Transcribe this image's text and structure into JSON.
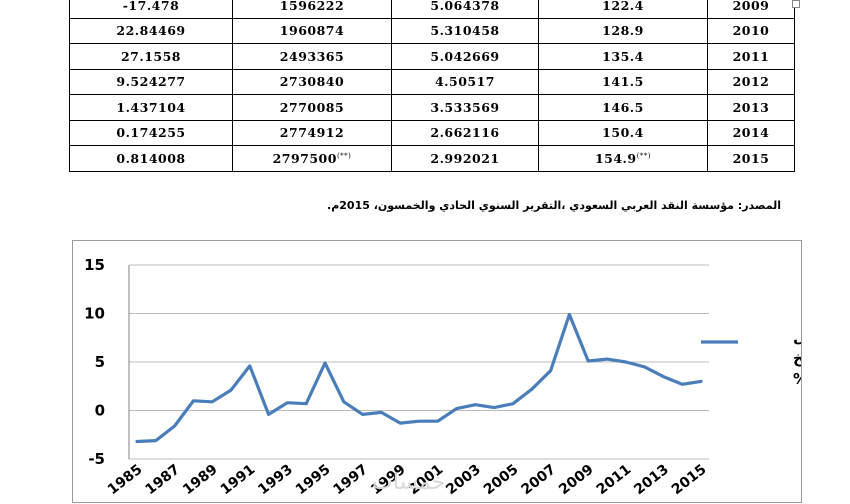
{
  "table": {
    "rows": [
      {
        "year": "2009",
        "c4": "122.4",
        "c4_note": "",
        "c3": "5.064378",
        "c2": "1596222",
        "c2_note": "",
        "c1": "-17.478"
      },
      {
        "year": "2010",
        "c4": "128.9",
        "c4_note": "",
        "c3": "5.310458",
        "c2": "1960874",
        "c2_note": "",
        "c1": "22.84469"
      },
      {
        "year": "2011",
        "c4": "135.4",
        "c4_note": "",
        "c3": "5.042669",
        "c2": "2493365",
        "c2_note": "",
        "c1": "27.1558"
      },
      {
        "year": "2012",
        "c4": "141.5",
        "c4_note": "",
        "c3": "4.50517",
        "c2": "2730840",
        "c2_note": "",
        "c1": "9.524277"
      },
      {
        "year": "2013",
        "c4": "146.5",
        "c4_note": "",
        "c3": "3.533569",
        "c2": "2770085",
        "c2_note": "",
        "c1": "1.437104"
      },
      {
        "year": "2014",
        "c4": "150.4",
        "c4_note": "",
        "c3": "2.662116",
        "c2": "2774912",
        "c2_note": "",
        "c1": "0.174255"
      },
      {
        "year": "2015",
        "c4": "154.9",
        "c4_note": "(**)",
        "c3": "2.992021",
        "c2": "2797500",
        "c2_note": "(**)",
        "c1": "0.814008"
      }
    ]
  },
  "source": "المصدر: مؤسسة النقد العربي السعودي ،التقرير السنوي الحادي والخمسون، 2015م.",
  "watermark": "خمسات",
  "chart_data": {
    "type": "line",
    "title": "",
    "xlabel": "",
    "ylabel": "",
    "ylim": [
      -5,
      15
    ],
    "yticks": [
      "15",
      "10",
      "5",
      "0",
      "-5"
    ],
    "x": [
      "1985",
      "1986",
      "1987",
      "1988",
      "1989",
      "1990",
      "1991",
      "1992",
      "1993",
      "1994",
      "1995",
      "1996",
      "1997",
      "1998",
      "1999",
      "2000",
      "2001",
      "2002",
      "2003",
      "2004",
      "2005",
      "2006",
      "2007",
      "2008",
      "2009",
      "2010",
      "2011",
      "2012",
      "2013",
      "2014",
      "2015"
    ],
    "xticks": [
      "1985",
      "1987",
      "1989",
      "1991",
      "1993",
      "1995",
      "1997",
      "1999",
      "2001",
      "2003",
      "2005",
      "2007",
      "2009",
      "2011",
      "2013",
      "2015"
    ],
    "grid": true,
    "legend_position": "right",
    "line_color": "#4a7ebb",
    "series": [
      {
        "name_lines": [
          "معدل",
          "التضخ",
          "م %"
        ],
        "values": [
          -3.2,
          -3.1,
          -1.6,
          1.0,
          0.9,
          2.1,
          4.6,
          -0.4,
          0.8,
          0.7,
          4.9,
          0.9,
          -0.4,
          -0.2,
          -1.3,
          -1.1,
          -1.1,
          0.2,
          0.6,
          0.3,
          0.7,
          2.2,
          4.1,
          9.9,
          5.1,
          5.3,
          5.0,
          4.5,
          3.5,
          2.7,
          3.0
        ]
      }
    ]
  }
}
